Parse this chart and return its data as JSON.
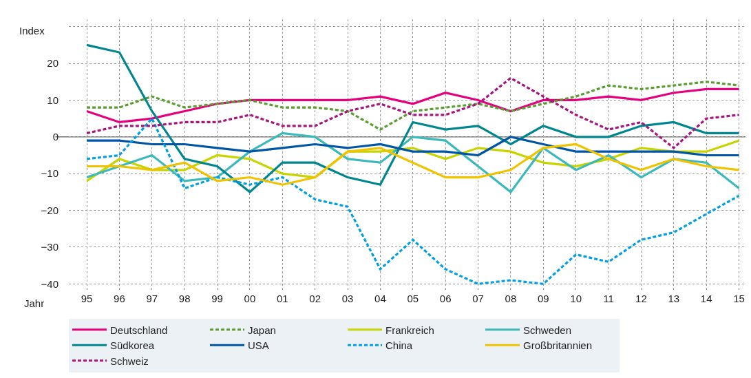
{
  "chart_data": {
    "type": "line",
    "xlabel": "Jahr",
    "ylabel": "Index",
    "categories": [
      "95",
      "96",
      "97",
      "98",
      "99",
      "00",
      "01",
      "02",
      "03",
      "04",
      "05",
      "06",
      "07",
      "08",
      "09",
      "10",
      "11",
      "12",
      "13",
      "14",
      "15"
    ],
    "ylim": [
      -42,
      32
    ],
    "yticks": [
      -40,
      -30,
      -20,
      -10,
      0,
      10,
      20,
      {
        "value": 30,
        "label": null
      }
    ],
    "grid": true,
    "legend": "bottom",
    "marker": "none",
    "ref_lines": [
      {
        "axis": "y",
        "value": 0,
        "color": "#707070",
        "line_style": "solid"
      }
    ],
    "series": [
      {
        "name": "Deutschland",
        "color": "#e6007e",
        "line_style": "solid",
        "values": [
          7,
          4,
          5,
          7,
          9,
          10,
          10,
          10,
          10,
          11,
          9,
          12,
          10,
          7,
          10,
          10,
          11,
          10,
          12,
          13,
          13
        ]
      },
      {
        "name": "Japan",
        "color": "#5a9e32",
        "line_style": "dashed",
        "values": [
          8,
          8,
          11,
          8,
          9,
          10,
          8,
          8,
          7,
          2,
          7,
          8,
          9,
          7,
          9,
          11,
          14,
          13,
          14,
          15,
          14
        ]
      },
      {
        "name": "Frankreich",
        "color": "#c8d400",
        "line_style": "solid",
        "values": [
          -12,
          -6,
          -9,
          -9,
          -5,
          -6,
          -10,
          -11,
          -4,
          -4,
          -3,
          -6,
          -3,
          -4,
          -7,
          -8,
          -6,
          -3,
          -4,
          -4,
          -1
        ]
      },
      {
        "name": "Schweden",
        "color": "#3cb9bb",
        "line_style": "solid",
        "values": [
          -11,
          -8,
          -5,
          -12,
          -11,
          -4,
          1,
          0,
          -6,
          -7,
          0,
          -1,
          -8,
          -15,
          -3,
          -9,
          -5,
          -11,
          -6,
          -7,
          -14
        ]
      },
      {
        "name": "Südkorea",
        "color": "#00868e",
        "line_style": "solid",
        "values": [
          25,
          23,
          7,
          -6,
          -8,
          -15,
          -7,
          -7,
          -11,
          -13,
          4,
          2,
          3,
          -2,
          3,
          0,
          0,
          3,
          4,
          1,
          1
        ]
      },
      {
        "name": "USA",
        "color": "#0055a5",
        "line_style": "solid",
        "values": [
          -1,
          -1,
          -2,
          -2,
          -3,
          -4,
          -3,
          -2,
          -3,
          -2,
          -4,
          -4,
          -5,
          0,
          -2,
          -4,
          -4,
          -4,
          -4,
          -5,
          -5
        ]
      },
      {
        "name": "China",
        "color": "#00a0e3",
        "line_style": "dashed",
        "values": [
          -6,
          -5,
          5,
          -14,
          -11,
          -13,
          -11,
          -17,
          -19,
          -36,
          -28,
          -36,
          -40,
          -39,
          -40,
          -32,
          -34,
          -28,
          -26,
          -21,
          -16
        ]
      },
      {
        "name": "Großbritannien",
        "color": "#f0c300",
        "line_style": "solid",
        "values": [
          -8,
          -8,
          -9,
          -7,
          -12,
          -11,
          -13,
          -11,
          -4,
          -3,
          -7,
          -11,
          -11,
          -9,
          -3,
          -2,
          -6,
          -9,
          -6,
          -8,
          -9
        ]
      },
      {
        "name": "Schweiz",
        "color": "#a5167f",
        "line_style": "dashed",
        "values": [
          1,
          3,
          3,
          4,
          4,
          6,
          3,
          3,
          7,
          9,
          6,
          6,
          9,
          16,
          11,
          6,
          2,
          4,
          -3,
          5,
          6
        ]
      }
    ]
  }
}
